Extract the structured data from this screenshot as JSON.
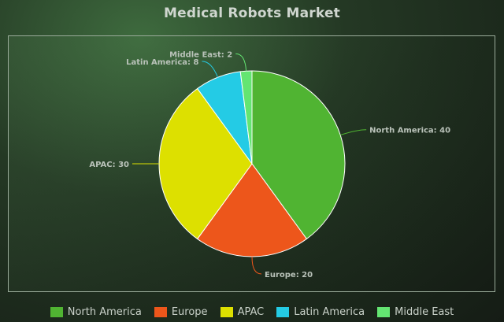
{
  "chart_data": {
    "type": "pie",
    "title": "Medical Robots Market",
    "categories": [
      "North America",
      "Europe",
      "APAC",
      "Latin America",
      "Middle East"
    ],
    "values": [
      40,
      20,
      30,
      8,
      2
    ],
    "colors": [
      "#50b432",
      "#ed561b",
      "#dde000",
      "#24cbe5",
      "#64e572"
    ],
    "labels": [
      "North America: 40",
      "Europe: 20",
      "APAC: 30",
      "Latin America: 8",
      "Middle East: 2"
    ],
    "legend_position": "bottom",
    "start_angle": "top, clockwise"
  }
}
